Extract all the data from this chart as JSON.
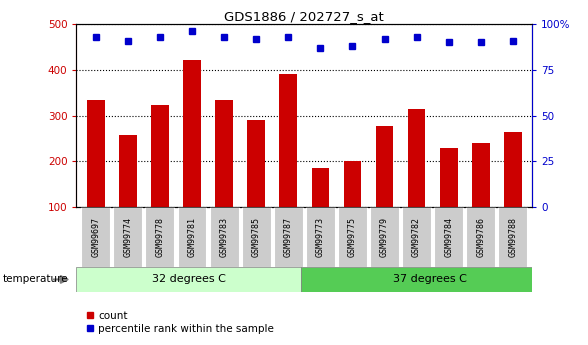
{
  "title": "GDS1886 / 202727_s_at",
  "categories": [
    "GSM99697",
    "GSM99774",
    "GSM99778",
    "GSM99781",
    "GSM99783",
    "GSM99785",
    "GSM99787",
    "GSM99773",
    "GSM99775",
    "GSM99779",
    "GSM99782",
    "GSM99784",
    "GSM99786",
    "GSM99788"
  ],
  "counts": [
    335,
    258,
    323,
    422,
    333,
    291,
    390,
    185,
    201,
    278,
    315,
    228,
    240,
    265
  ],
  "percentiles": [
    93,
    91,
    93,
    96,
    93,
    92,
    93,
    87,
    88,
    92,
    93,
    90,
    90,
    91
  ],
  "group1_label": "32 degrees C",
  "group2_label": "37 degrees C",
  "group1_count": 7,
  "group2_count": 7,
  "bar_color": "#cc0000",
  "dot_color": "#0000cc",
  "group1_bg": "#ccffcc",
  "group2_bg": "#55cc55",
  "tick_bg": "#cccccc",
  "ylim_left": [
    100,
    500
  ],
  "ylim_right": [
    0,
    100
  ],
  "yticks_left": [
    100,
    200,
    300,
    400,
    500
  ],
  "yticks_right": [
    0,
    25,
    50,
    75,
    100
  ],
  "temperature_label": "temperature",
  "legend_count_label": "count",
  "legend_pct_label": "percentile rank within the sample"
}
